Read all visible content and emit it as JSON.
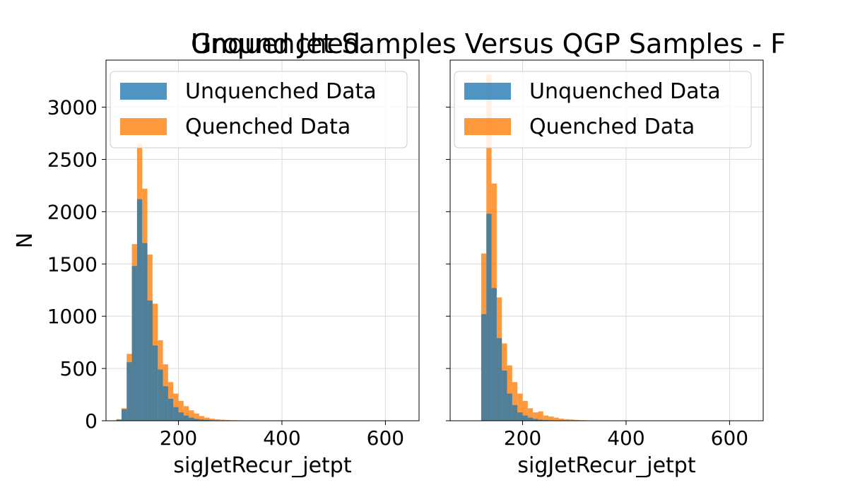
{
  "figure": {
    "title_overlap_a": "Unquenched",
    "title_overlap_b": "Ground Jet Samples Versus QGP Samples  - F"
  },
  "colors": {
    "unquenched": "#1f77b4",
    "quenched": "#ff7f0e",
    "grid": "#d9d9d9",
    "axes": "#000000"
  },
  "chart_data": [
    {
      "type": "bar",
      "title": "",
      "xlabel": "sigJetRecur_jetpt",
      "ylabel": "N",
      "xlim": [
        60,
        665
      ],
      "ylim": [
        0,
        3450
      ],
      "xticks": [
        200,
        400,
        600
      ],
      "yticks": [
        0,
        500,
        1000,
        1500,
        2000,
        2500,
        3000
      ],
      "grid": true,
      "legend": "top-left",
      "bin_width": 10,
      "bin_start": 80,
      "series": [
        {
          "name": "Unquenched Data",
          "color": "#1f77b4",
          "values": [
            10,
            110,
            560,
            1480,
            2120,
            1700,
            1150,
            720,
            490,
            330,
            210,
            130,
            80,
            50,
            30,
            18,
            12,
            8,
            5,
            3,
            2,
            1,
            1,
            1,
            0,
            0,
            0,
            0,
            0,
            0,
            0,
            0,
            0,
            0,
            0,
            0,
            0,
            0,
            0,
            0,
            0,
            0,
            0,
            0,
            0,
            0,
            0,
            0,
            0,
            0,
            0,
            0,
            0,
            0,
            0,
            0
          ]
        },
        {
          "name": "Quenched Data",
          "color": "#ff7f0e",
          "values": [
            15,
            120,
            640,
            1690,
            2650,
            2220,
            1590,
            1120,
            770,
            540,
            370,
            260,
            190,
            140,
            100,
            70,
            45,
            30,
            20,
            14,
            10,
            7,
            5,
            4,
            3,
            2,
            2,
            1,
            1,
            1,
            0,
            0,
            0,
            0,
            0,
            0,
            0,
            0,
            0,
            0,
            0,
            0,
            0,
            0,
            0,
            0,
            0,
            0,
            0,
            0,
            0,
            0,
            0,
            0,
            0,
            0
          ]
        }
      ]
    },
    {
      "type": "bar",
      "title": "",
      "xlabel": "sigJetRecur_jetpt",
      "ylabel": "",
      "xlim": [
        60,
        665
      ],
      "ylim": [
        0,
        3450
      ],
      "xticks": [
        200,
        400,
        600
      ],
      "yticks": [
        0,
        500,
        1000,
        1500,
        2000,
        2500,
        3000
      ],
      "grid": true,
      "legend": "top-left",
      "bin_width": 10,
      "bin_start": 120,
      "series": [
        {
          "name": "Unquenched Data",
          "color": "#1f77b4",
          "values": [
            1020,
            1980,
            1270,
            790,
            480,
            260,
            150,
            80,
            50,
            30,
            18,
            10,
            6,
            4,
            2,
            1,
            1,
            1,
            0,
            0,
            0,
            0,
            0,
            0,
            0,
            0,
            0,
            0,
            0,
            0,
            0,
            0,
            0,
            0,
            0,
            0,
            0,
            0,
            0,
            0,
            0,
            0,
            0,
            0,
            0,
            0,
            0,
            0,
            0,
            0,
            0,
            0
          ]
        },
        {
          "name": "Quenched Data",
          "color": "#ff7f0e",
          "values": [
            1600,
            3310,
            2270,
            1180,
            740,
            530,
            370,
            260,
            190,
            120,
            80,
            90,
            50,
            40,
            30,
            20,
            15,
            12,
            8,
            6,
            4,
            3,
            2,
            2,
            1,
            1,
            1,
            1,
            1,
            1,
            1,
            0,
            0,
            0,
            0,
            0,
            0,
            0,
            0,
            0,
            0,
            0,
            0,
            0,
            0,
            0,
            0,
            0,
            0,
            0,
            0,
            0
          ]
        }
      ]
    }
  ]
}
